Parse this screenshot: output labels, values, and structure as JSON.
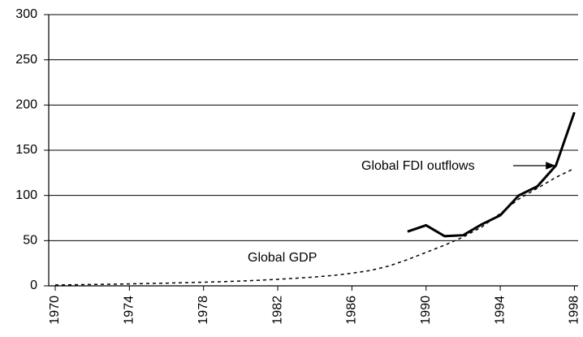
{
  "chart_data": {
    "type": "line",
    "series": [
      {
        "name": "Global FDI outflows",
        "color": "#000000",
        "dash": false,
        "x": [
          1989,
          1990,
          1991,
          1992,
          1993,
          1994,
          1995,
          1996,
          1997,
          1998
        ],
        "values": [
          60,
          67,
          55,
          56,
          68,
          78,
          100,
          110,
          133,
          192
        ]
      },
      {
        "name": "Global GDP",
        "color": "#000000",
        "dash": true,
        "x": [
          1970,
          1971,
          1972,
          1973,
          1974,
          1975,
          1976,
          1977,
          1978,
          1979,
          1980,
          1981,
          1982,
          1983,
          1984,
          1985,
          1986,
          1987,
          1988,
          1989,
          1990,
          1991,
          1992,
          1993,
          1994,
          1995,
          1996,
          1997,
          1998
        ],
        "values": [
          1,
          1.2,
          1.5,
          1.8,
          2.2,
          2.6,
          3,
          3.5,
          4,
          4.6,
          5.3,
          6.2,
          7.2,
          8.4,
          9.8,
          11.5,
          14,
          17,
          22,
          29,
          37,
          45,
          54,
          65,
          80,
          96,
          108,
          120,
          130
        ]
      }
    ],
    "xlim": [
      1969.65,
      1998.2
    ],
    "xticks": [
      1970,
      1974,
      1978,
      1982,
      1986,
      1990,
      1994,
      1998
    ],
    "ylim": [
      0,
      300
    ],
    "yticks": [
      0,
      50,
      100,
      150,
      200,
      250,
      300
    ],
    "grid": true
  }
}
